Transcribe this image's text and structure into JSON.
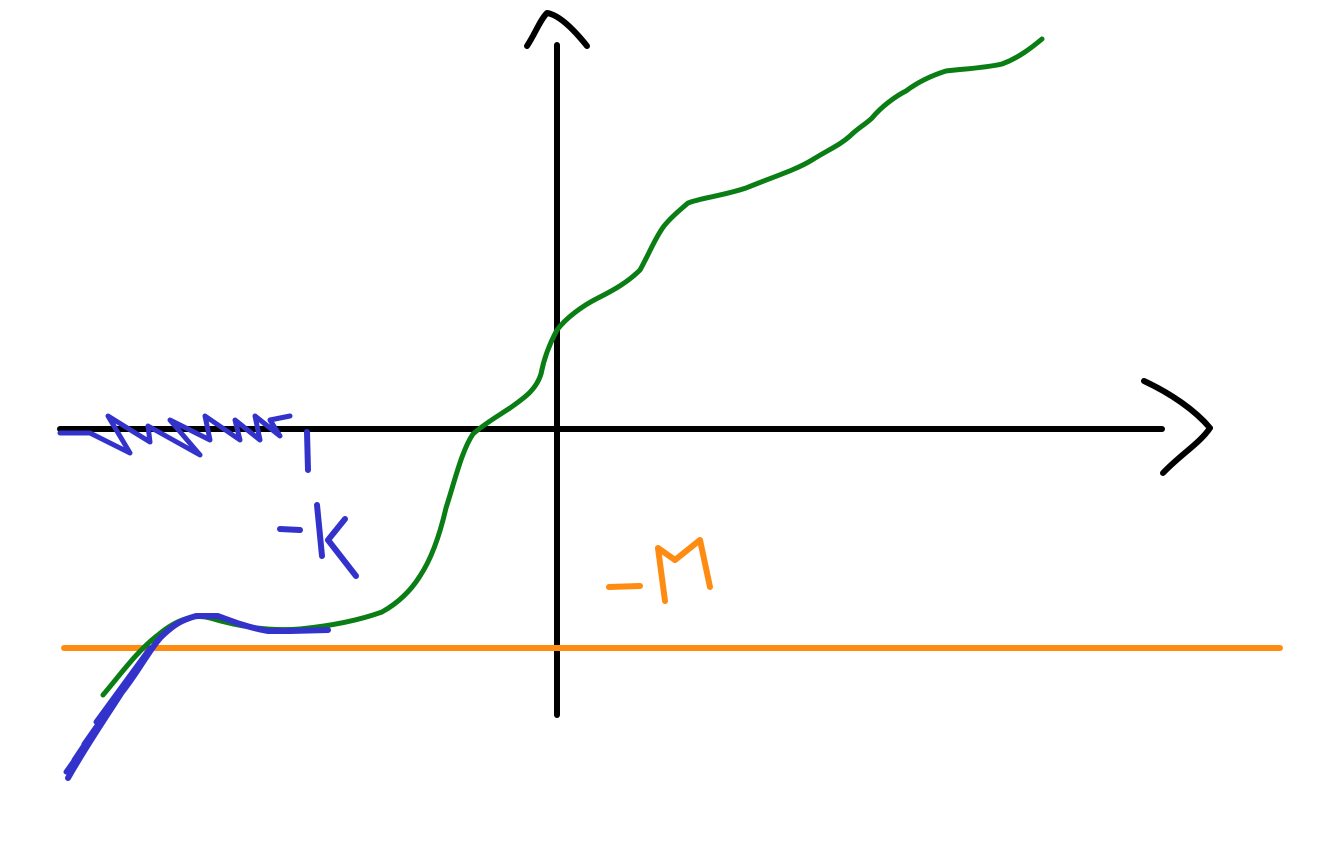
{
  "labels": {
    "k": "-k",
    "m": "-M",
    "one": "1"
  },
  "colors": {
    "axes": "#000000",
    "main_curve": "#0a7d14",
    "blue_sketch": "#3333cc",
    "m_line": "#ff8c12"
  }
}
